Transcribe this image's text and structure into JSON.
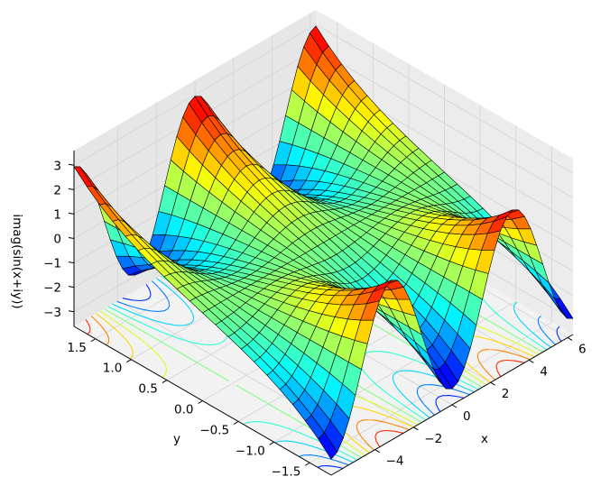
{
  "chart_data": {
    "type": "surface3d",
    "function": "imag(sin(x+iy))",
    "xlabel": "x",
    "ylabel": "y",
    "zlabel": "imag(sin(x+iy))",
    "xlim": [
      -6.28,
      6.28
    ],
    "ylim": [
      -1.8,
      1.8
    ],
    "zlim": [
      -3.6,
      3.6
    ],
    "x_ticks": [
      "−4",
      "−2",
      "0",
      "2",
      "4",
      "6"
    ],
    "x_tick_values": [
      -4,
      -2,
      0,
      2,
      4,
      6
    ],
    "y_ticks": [
      "−1.5",
      "−1.0",
      "−0.5",
      "0.0",
      "0.5",
      "1.0",
      "1.5"
    ],
    "y_tick_values": [
      -1.5,
      -1.0,
      -0.5,
      0.0,
      0.5,
      1.0,
      1.5
    ],
    "z_ticks": [
      "−3",
      "−2",
      "−1",
      "0",
      "1",
      "2",
      "3"
    ],
    "z_tick_values": [
      -3,
      -2,
      -1,
      0,
      1,
      2,
      3
    ],
    "colormap": "jet",
    "contour_offset": "floor",
    "grid": true,
    "samples": {
      "x": [
        -6.28,
        -4.71,
        -3.14,
        -1.57,
        0,
        1.57,
        3.14,
        4.71,
        6.28
      ],
      "y_1_5": [
        2.13,
        0,
        -2.13,
        0,
        2.13,
        0,
        -2.13,
        0,
        2.13
      ],
      "y_minus_1_5": [
        -2.13,
        0,
        2.13,
        0,
        -2.13,
        0,
        2.13,
        0,
        -2.13
      ]
    }
  }
}
